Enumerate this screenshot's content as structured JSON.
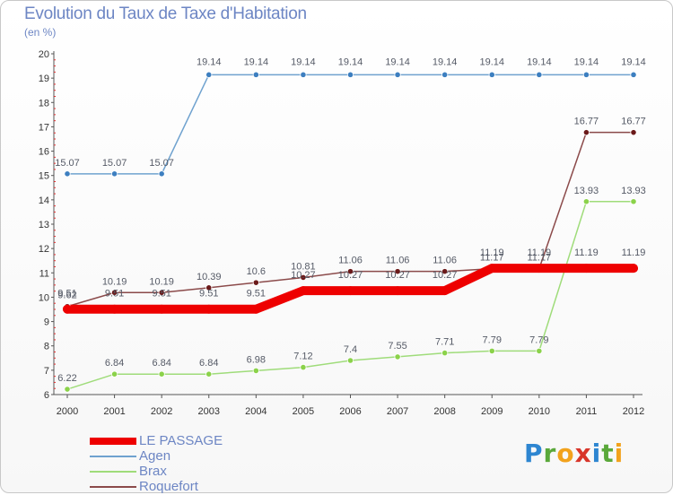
{
  "title": "Evolution du Taux de Taxe d'Habitation",
  "subtitle": "(en %)",
  "logo": {
    "letters": [
      {
        "ch": "P",
        "color": "#2e86d1"
      },
      {
        "ch": "r",
        "color": "#5aa83a"
      },
      {
        "ch": "o",
        "color": "#f2a21c"
      },
      {
        "ch": "x",
        "color": "#d8352a"
      },
      {
        "ch": "i",
        "color": "#2e86d1"
      },
      {
        "ch": "t",
        "color": "#5aa83a"
      },
      {
        "ch": "i",
        "color": "#f2a21c"
      }
    ]
  },
  "chart_data": {
    "type": "line",
    "x": [
      "2000",
      "2001",
      "2002",
      "2003",
      "2004",
      "2005",
      "2006",
      "2007",
      "2008",
      "2009",
      "2010",
      "2011",
      "2012"
    ],
    "ylim": [
      6,
      20
    ],
    "yticks": [
      "6",
      "7",
      "8",
      "9",
      "10",
      "11",
      "12",
      "13",
      "14",
      "15",
      "16",
      "17",
      "18",
      "19",
      "20"
    ],
    "grid": false,
    "legend_position": "bottom-left",
    "series": [
      {
        "name": "LE PASSAGE",
        "color": "#ee0000",
        "thick": true,
        "values": [
          9.51,
          9.51,
          9.51,
          9.51,
          9.51,
          10.27,
          10.27,
          10.27,
          10.27,
          11.19,
          11.19,
          11.19,
          11.19
        ],
        "labels": [
          "9.51",
          "9.51",
          "9.51",
          "9.51",
          "9.51",
          "10.27",
          "10.27",
          "10.27",
          "10.27",
          "11.19",
          "11.19",
          "11.19",
          "11.19"
        ]
      },
      {
        "name": "Agen",
        "color": "#6fa2cf",
        "point": "#3d7fc0",
        "values": [
          15.07,
          15.07,
          15.07,
          19.14,
          19.14,
          19.14,
          19.14,
          19.14,
          19.14,
          19.14,
          19.14,
          19.14,
          19.14
        ],
        "labels": [
          "15.07",
          "15.07",
          "15.07",
          "19.14",
          "19.14",
          "19.14",
          "19.14",
          "19.14",
          "19.14",
          "19.14",
          "19.14",
          "19.14",
          "19.14"
        ]
      },
      {
        "name": "Brax",
        "color": "#9fdc7a",
        "point": "#8bd24a",
        "values": [
          6.22,
          6.84,
          6.84,
          6.84,
          6.98,
          7.12,
          7.4,
          7.55,
          7.71,
          7.79,
          7.79,
          13.93,
          13.93
        ],
        "labels": [
          "6.22",
          "6.84",
          "6.84",
          "6.84",
          "6.98",
          "7.12",
          "7.4",
          "7.55",
          "7.71",
          "7.79",
          "7.79",
          "13.93",
          "13.93"
        ]
      },
      {
        "name": "Roquefort",
        "color": "#8b4a4a",
        "point": "#6b1a1a",
        "values": [
          9.62,
          10.19,
          10.19,
          10.39,
          10.6,
          10.81,
          11.06,
          11.06,
          11.06,
          11.17,
          11.17,
          16.77,
          16.77
        ],
        "labels": [
          "9.62",
          "10.19",
          "10.19",
          "10.39",
          "10.6",
          "10.81",
          "11.06",
          "11.06",
          "11.06",
          "11.17",
          "11.17",
          "16.77",
          "16.77"
        ]
      }
    ]
  }
}
